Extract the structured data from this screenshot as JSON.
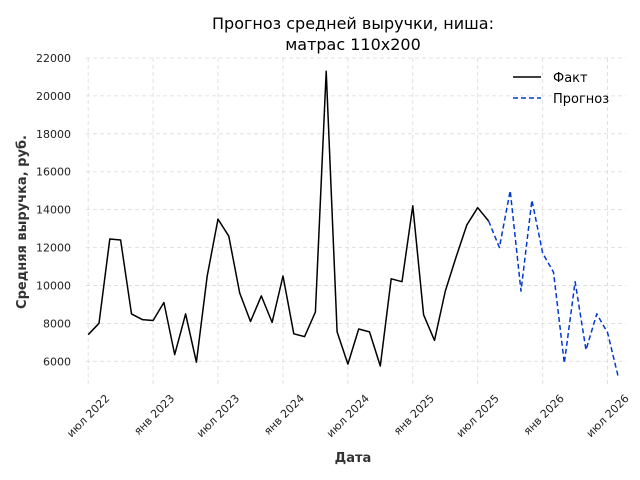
{
  "chart_data": {
    "type": "line",
    "title_lines": [
      "Прогноз средней выручки, ниша:",
      "матрас 110x200"
    ],
    "xlabel": "Дата",
    "ylabel": "Средняя выручка, руб.",
    "ylim": [
      4800,
      22000
    ],
    "yticks": [
      6000,
      8000,
      10000,
      12000,
      14000,
      16000,
      18000,
      20000,
      22000
    ],
    "xticks": [
      {
        "label": "июл 2022",
        "date": "2022-07"
      },
      {
        "label": "янв 2023",
        "date": "2023-01"
      },
      {
        "label": "июл 2023",
        "date": "2023-07"
      },
      {
        "label": "янв 2024",
        "date": "2024-01"
      },
      {
        "label": "июл 2024",
        "date": "2024-07"
      },
      {
        "label": "янв 2025",
        "date": "2025-01"
      },
      {
        "label": "июл 2025",
        "date": "2025-07"
      },
      {
        "label": "янв 2026",
        "date": "2026-01"
      },
      {
        "label": "июл 2026",
        "date": "2026-07"
      }
    ],
    "grid": true,
    "legend_position": "top-right",
    "series": [
      {
        "name": "Факт",
        "color": "#000000",
        "style": "solid",
        "x": [
          "2022-07",
          "2022-08",
          "2022-09",
          "2022-10",
          "2022-11",
          "2022-12",
          "2023-01",
          "2023-02",
          "2023-03",
          "2023-04",
          "2023-05",
          "2023-06",
          "2023-07",
          "2023-08",
          "2023-09",
          "2023-10",
          "2023-11",
          "2023-12",
          "2024-01",
          "2024-02",
          "2024-03",
          "2024-04",
          "2024-05",
          "2024-06",
          "2024-07",
          "2024-08",
          "2024-09",
          "2024-10",
          "2024-11",
          "2024-12",
          "2025-01",
          "2025-02",
          "2025-03",
          "2025-04",
          "2025-05",
          "2025-06",
          "2025-07",
          "2025-08"
        ],
        "y": [
          7400,
          8000,
          12450,
          12400,
          8500,
          8200,
          8150,
          9100,
          6350,
          8500,
          5950,
          10500,
          13500,
          12600,
          9600,
          8100,
          9450,
          8050,
          10500,
          7450,
          7300,
          8600,
          21300,
          7550,
          5850,
          7700,
          7550,
          5750,
          10350,
          10200,
          14200,
          8450,
          7100,
          9700,
          11500,
          13200,
          14100,
          13400
        ]
      },
      {
        "name": "Прогноз",
        "color": "#0039d6",
        "style": "dashed",
        "x": [
          "2025-08",
          "2025-09",
          "2025-10",
          "2025-11",
          "2025-12",
          "2026-01",
          "2026-02",
          "2026-03",
          "2026-04",
          "2026-05",
          "2026-06",
          "2026-07",
          "2026-08"
        ],
        "y": [
          13400,
          12000,
          15000,
          9700,
          14500,
          11700,
          10700,
          5900,
          10200,
          6600,
          8500,
          7500,
          5150
        ]
      }
    ]
  }
}
